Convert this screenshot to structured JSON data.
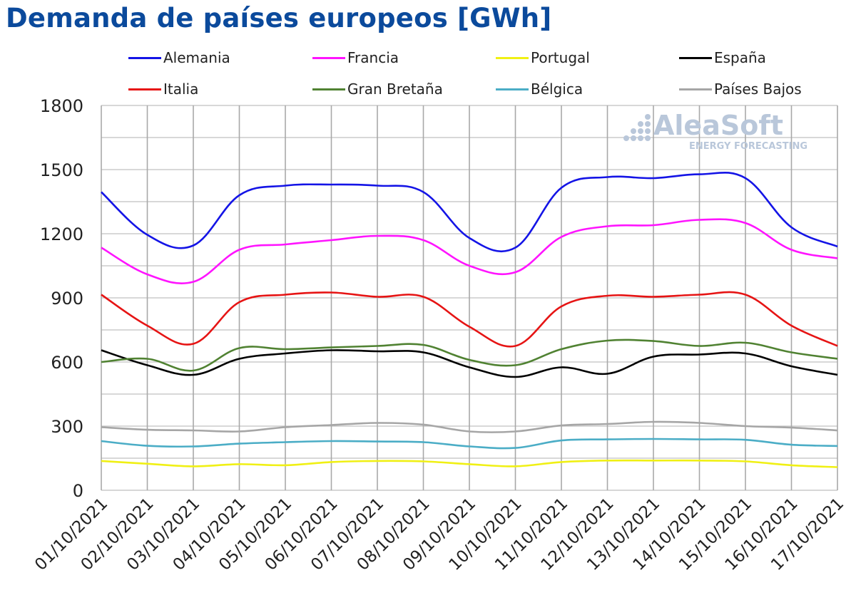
{
  "chart_data": {
    "type": "line",
    "title": "Demanda de países europeos [GWh]",
    "xlabel": "",
    "ylabel": "",
    "ylim": [
      0,
      1800
    ],
    "yticks": [
      0,
      300,
      600,
      900,
      1200,
      1500,
      1800
    ],
    "grid": true,
    "legend_position": "top",
    "categories": [
      "01/10/2021",
      "02/10/2021",
      "03/10/2021",
      "04/10/2021",
      "05/10/2021",
      "06/10/2021",
      "07/10/2021",
      "08/10/2021",
      "09/10/2021",
      "10/10/2021",
      "11/10/2021",
      "12/10/2021",
      "13/10/2021",
      "14/10/2021",
      "15/10/2021",
      "16/10/2021",
      "17/10/2021"
    ],
    "series": [
      {
        "name": "Alemania",
        "color": "#1414e6",
        "values": [
          1395,
          1195,
          1145,
          1380,
          1425,
          1430,
          1425,
          1395,
          1180,
          1135,
          1415,
          1465,
          1460,
          1478,
          1460,
          1230,
          1140
        ]
      },
      {
        "name": "Francia",
        "color": "#ff14ff",
        "values": [
          1135,
          1010,
          975,
          1125,
          1150,
          1170,
          1190,
          1170,
          1050,
          1020,
          1185,
          1235,
          1240,
          1265,
          1250,
          1125,
          1085
        ]
      },
      {
        "name": "Portugal",
        "color": "#f0f014",
        "values": [
          137,
          124,
          112,
          122,
          117,
          132,
          137,
          135,
          122,
          112,
          132,
          139,
          139,
          139,
          135,
          117,
          108
        ]
      },
      {
        "name": "España",
        "color": "#000000",
        "values": [
          655,
          585,
          540,
          615,
          640,
          655,
          650,
          645,
          575,
          530,
          575,
          545,
          625,
          635,
          640,
          580,
          540
        ]
      },
      {
        "name": "Italia",
        "color": "#e61414",
        "values": [
          915,
          770,
          685,
          880,
          915,
          925,
          905,
          905,
          765,
          675,
          860,
          910,
          905,
          915,
          915,
          770,
          675
        ]
      },
      {
        "name": "Gran Bretaña",
        "color": "#508232",
        "values": [
          600,
          615,
          560,
          665,
          660,
          668,
          675,
          680,
          610,
          585,
          660,
          700,
          698,
          675,
          690,
          645,
          615
        ]
      },
      {
        "name": "Bélgica",
        "color": "#4badc6",
        "values": [
          230,
          208,
          205,
          218,
          225,
          230,
          228,
          225,
          205,
          198,
          233,
          238,
          240,
          238,
          236,
          213,
          207
        ]
      },
      {
        "name": "Países Bajos",
        "color": "#a6a6a6",
        "values": [
          295,
          283,
          280,
          275,
          295,
          305,
          315,
          307,
          275,
          275,
          303,
          310,
          320,
          315,
          300,
          293,
          280
        ]
      }
    ]
  },
  "watermark": {
    "brand": "AleaSoft",
    "subtitle": "ENERGY FORECASTING"
  }
}
